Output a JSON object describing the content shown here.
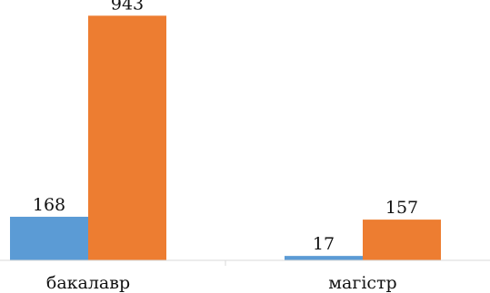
{
  "chart_data": {
    "type": "bar",
    "categories": [
      "бакалавр",
      "магістр"
    ],
    "series": [
      {
        "values": [
          168,
          17
        ],
        "color": "#5b9bd5"
      },
      {
        "values": [
          943,
          157
        ],
        "color": "#ed7d31"
      }
    ],
    "ylim": [
      0,
      1000
    ],
    "grid": false,
    "legend": "none",
    "title": "",
    "xlabel": "",
    "ylabel": ""
  }
}
